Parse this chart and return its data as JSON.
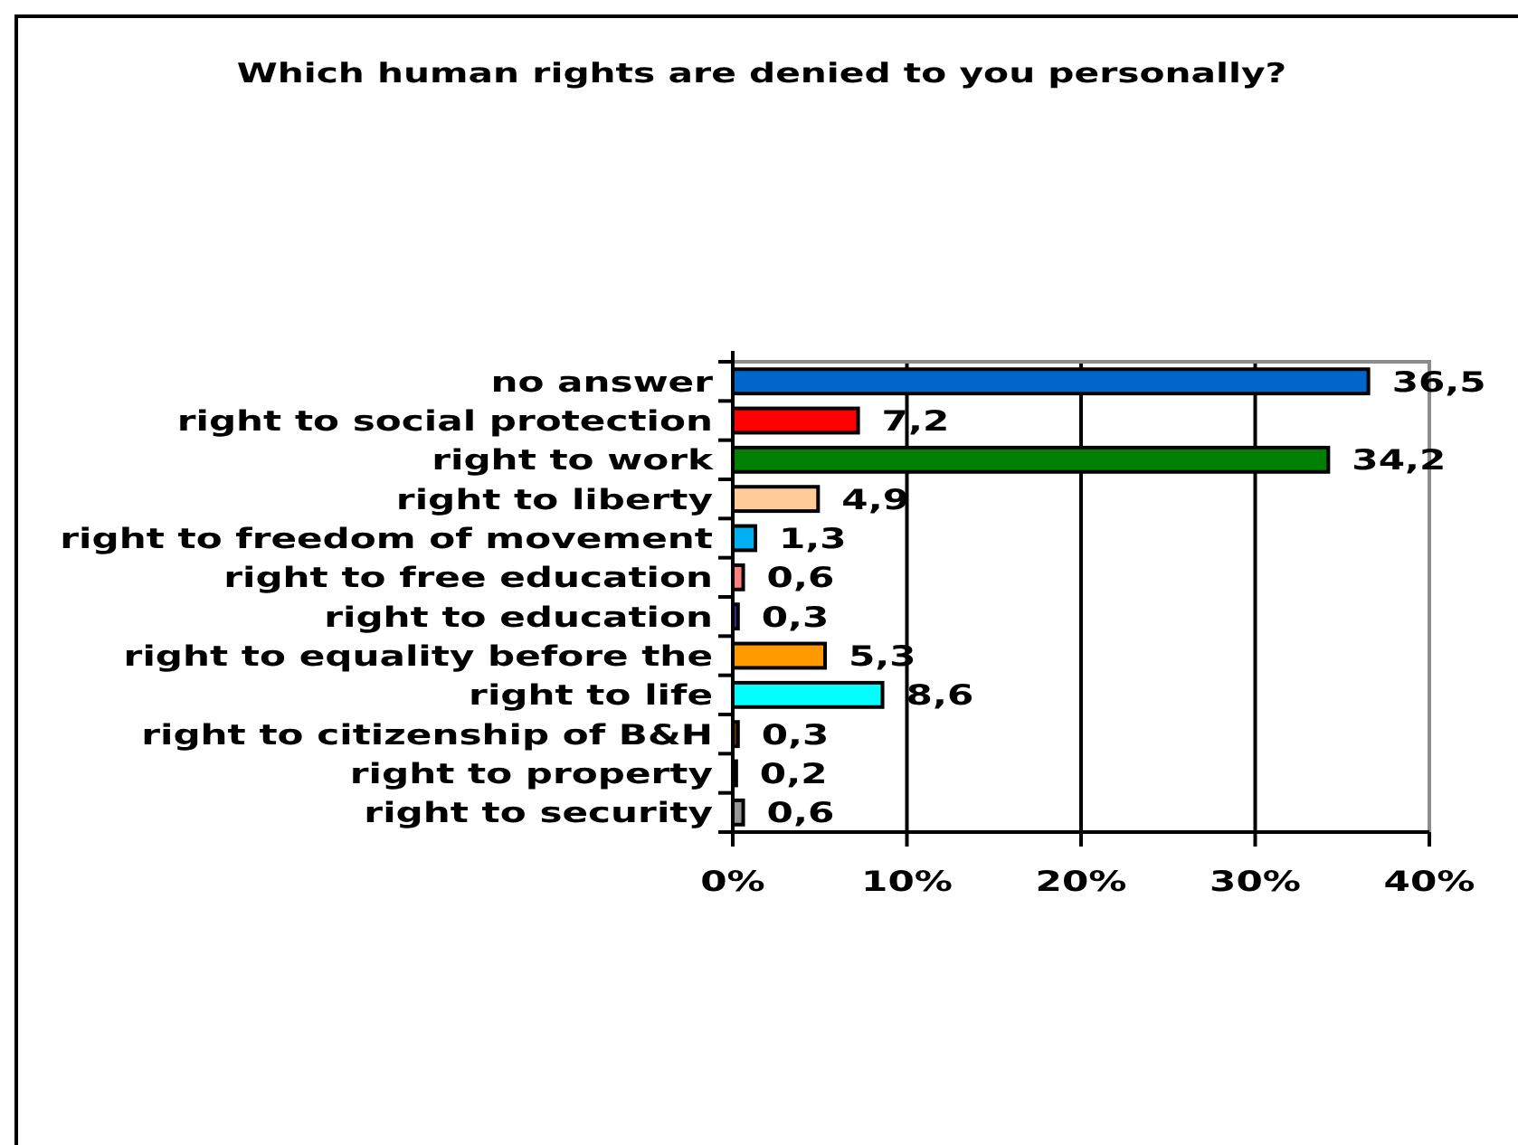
{
  "chart_data": {
    "type": "bar",
    "orientation": "horizontal",
    "title": "Which human rights are denied to you personally?",
    "categories": [
      "no answer",
      "right to social protection",
      "right to work",
      "right to liberty",
      "right to freedom of movement",
      "right to free education",
      "right to education",
      "right to equality before the",
      "right to life",
      "right to citizenship of B&H",
      "right to property",
      "right to security"
    ],
    "values": [
      36.5,
      7.2,
      34.2,
      4.9,
      1.3,
      0.6,
      0.3,
      5.3,
      8.6,
      0.3,
      0.2,
      0.6
    ],
    "value_labels": [
      "36,5",
      "7,2",
      "34,2",
      "4,9",
      "1,3",
      "0,6",
      "0,3",
      "5,3",
      "8,6",
      "0,3",
      "0,2",
      "0,6"
    ],
    "colors": [
      "#0066cc",
      "#ff0000",
      "#008000",
      "#ffcc99",
      "#00b0f0",
      "#ff8080",
      "#333399",
      "#ff9900",
      "#00ffff",
      "#663300",
      "#808000",
      "#969696"
    ],
    "xlim": [
      0,
      40
    ],
    "xticks": [
      {
        "value": 0,
        "label": "0%"
      },
      {
        "value": 10,
        "label": "10%"
      },
      {
        "value": 20,
        "label": "20%"
      },
      {
        "value": 30,
        "label": "30%"
      },
      {
        "value": 40,
        "label": "40%"
      }
    ],
    "grid": "x"
  }
}
